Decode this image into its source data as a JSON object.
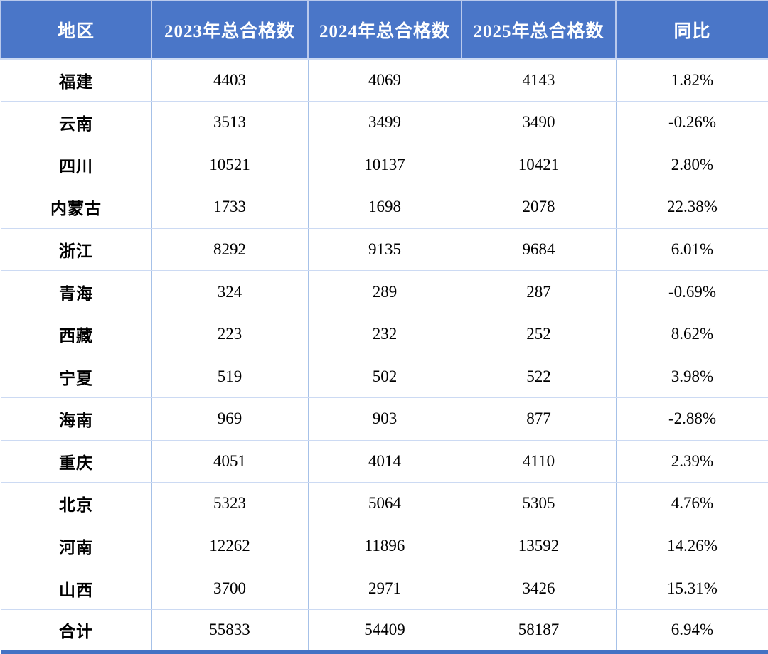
{
  "table": {
    "columns": [
      "地区",
      "2023年总合格数",
      "2024年总合格数",
      "2025年总合格数",
      "同比"
    ],
    "rows": [
      {
        "cells": [
          "福建",
          "4403",
          "4069",
          "4143",
          "1.82%"
        ]
      },
      {
        "cells": [
          "云南",
          "3513",
          "3499",
          "3490",
          "-0.26%"
        ]
      },
      {
        "cells": [
          "四川",
          "10521",
          "10137",
          "10421",
          "2.80%"
        ]
      },
      {
        "cells": [
          "内蒙古",
          "1733",
          "1698",
          "2078",
          "22.38%"
        ]
      },
      {
        "cells": [
          "浙江",
          "8292",
          "9135",
          "9684",
          "6.01%"
        ]
      },
      {
        "cells": [
          "青海",
          "324",
          "289",
          "287",
          "-0.69%"
        ]
      },
      {
        "cells": [
          "西藏",
          "223",
          "232",
          "252",
          "8.62%"
        ]
      },
      {
        "cells": [
          "宁夏",
          "519",
          "502",
          "522",
          "3.98%"
        ]
      },
      {
        "cells": [
          "海南",
          "969",
          "903",
          "877",
          "-2.88%"
        ]
      },
      {
        "cells": [
          "重庆",
          "4051",
          "4014",
          "4110",
          "2.39%"
        ]
      },
      {
        "cells": [
          "北京",
          "5323",
          "5064",
          "5305",
          "4.76%"
        ]
      },
      {
        "cells": [
          "河南",
          "12262",
          "11896",
          "13592",
          "14.26%"
        ]
      },
      {
        "cells": [
          "山西",
          "3700",
          "2971",
          "3426",
          "15.31%"
        ]
      },
      {
        "cells": [
          "合计",
          "55833",
          "54409",
          "58187",
          "6.94%"
        ]
      }
    ],
    "total_row_label": "合计"
  },
  "colors": {
    "header_bg": "#4a76c8",
    "header_text": "#ffffff",
    "header_border": "#b9c9ec",
    "grid_vertical": "#a6c1e8",
    "grid_horizontal": "#ccdaf3",
    "bottom_bar": "#4472c4",
    "body_text": "#000000",
    "page_bg": "#ffffff"
  }
}
